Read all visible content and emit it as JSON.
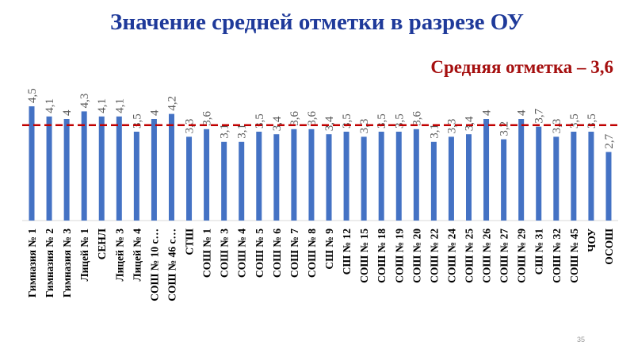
{
  "slide": {
    "title": "Значение средней отметки в разрезе ОУ",
    "average_label": "Средняя отметка – 3,6",
    "page_number": "35"
  },
  "chart_data": {
    "type": "bar",
    "title": "Значение средней отметки в разрезе ОУ",
    "categories": [
      "Гимназия № 1",
      "Гимназия № 2",
      "Гимназия № 3",
      "Лицей № 1",
      "СЕНЛ",
      "Лицей № 3",
      "Лицей № 4",
      "СОШ № 10 с…",
      "СОШ № 46 с…",
      "СТШ",
      "СОШ № 1",
      "СОШ № 3",
      "СОШ № 4",
      "СОШ № 5",
      "СОШ № 6",
      "СОШ № 7",
      "СОШ № 8",
      "СШ № 9",
      "СШ № 12",
      "СОШ № 15",
      "СОШ № 18",
      "СОШ № 19",
      "СОШ № 20",
      "СОШ № 22",
      "СОШ № 24",
      "СОШ № 25",
      "СОШ № 26",
      "СОШ № 27",
      "СОШ № 29",
      "СШ № 31",
      "СОШ № 32",
      "СОШ № 45",
      "ЧОУ",
      "ОСОШ"
    ],
    "values": [
      4.5,
      4.1,
      4,
      4.3,
      4.1,
      4.1,
      3.5,
      4,
      4.2,
      3.3,
      3.6,
      3.1,
      3.1,
      3.5,
      3.4,
      3.6,
      3.6,
      3.4,
      3.5,
      3.3,
      3.5,
      3.5,
      3.6,
      3.1,
      3.3,
      3.4,
      4,
      3.2,
      4,
      3.7,
      3.3,
      3.5,
      3.5,
      2.7
    ],
    "data_labels": [
      "4,5",
      "4,1",
      "4",
      "4,3",
      "4,1",
      "4,1",
      "3,5",
      "4",
      "4,2",
      "3,3",
      "3,6",
      "3,1",
      "3,1",
      "3,5",
      "3,4",
      "3,6",
      "3,6",
      "3,4",
      "3,5",
      "3,3",
      "3,5",
      "3,5",
      "3,6",
      "3,1",
      "3,3",
      "3,4",
      "4",
      "3,2",
      "4",
      "3,7",
      "3,3",
      "3,5",
      "3,5",
      "2,7"
    ],
    "reference_line": {
      "value": 3.6,
      "label": "Средняя отметка – 3,6",
      "color": "#c00000",
      "style": "dashed"
    },
    "ylim": [
      0,
      5
    ],
    "grid": false,
    "legend": "none",
    "bar_color": "#4472c4"
  }
}
